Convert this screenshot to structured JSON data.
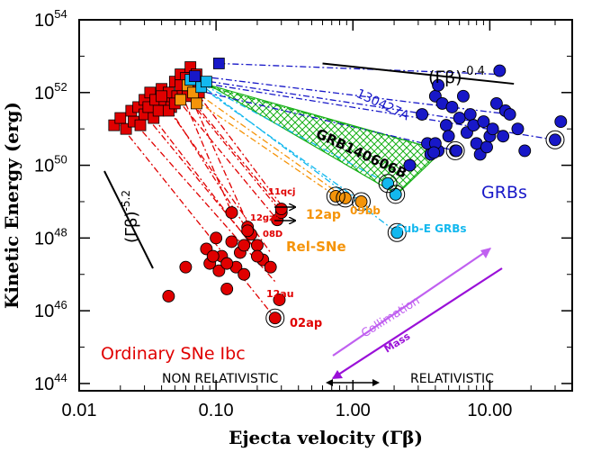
{
  "chart_data": {
    "type": "scatter",
    "xlabel": "Ejecta velocity (Γβ)",
    "ylabel": "Kinetic Energy (erg)",
    "xscale": "log",
    "yscale": "log",
    "xlim": [
      0.01,
      40
    ],
    "ylim_log10": [
      43.8,
      54
    ],
    "x_ticks": [
      {
        "value": 0.01,
        "label": "0.01"
      },
      {
        "value": 0.1,
        "label": "0.10"
      },
      {
        "value": 1,
        "label": "1.00"
      },
      {
        "value": 10,
        "label": "10.00"
      }
    ],
    "y_ticks": [
      {
        "exp": 44,
        "base": "10",
        "label": "44"
      },
      {
        "exp": 46,
        "base": "10",
        "label": "46"
      },
      {
        "exp": 48,
        "base": "10",
        "label": "48"
      },
      {
        "exp": 50,
        "base": "10",
        "label": "50"
      },
      {
        "exp": 52,
        "base": "10",
        "label": "52"
      },
      {
        "exp": 54,
        "base": "10",
        "label": "54"
      }
    ],
    "colors": {
      "ordinary": "#e00000",
      "relsne": "#f5940a",
      "subegrb": "#13b8ee",
      "grb": "#1818c8",
      "grb140606b": "#16b016",
      "collimation": "#c060f0",
      "mass": "#9a10d8"
    },
    "series": [
      {
        "name": "Ordinary SNe Ibc (circles)",
        "marker": "circle",
        "color": "#e00000",
        "points": [
          [
            0.045,
            46.4
          ],
          [
            0.06,
            47.2
          ],
          [
            0.085,
            47.7
          ],
          [
            0.09,
            47.3
          ],
          [
            0.1,
            48.0
          ],
          [
            0.105,
            47.1
          ],
          [
            0.11,
            47.5
          ],
          [
            0.12,
            46.6
          ],
          [
            0.13,
            47.9
          ],
          [
            0.14,
            47.2
          ],
          [
            0.15,
            47.6
          ],
          [
            0.16,
            47.0
          ],
          [
            0.17,
            48.3
          ],
          [
            0.18,
            48.1
          ],
          [
            0.2,
            47.8
          ],
          [
            0.22,
            47.4
          ],
          [
            0.25,
            47.2
          ],
          [
            0.28,
            48.5
          ],
          [
            0.3,
            48.7
          ],
          [
            0.3,
            48.8
          ],
          [
            0.29,
            46.3
          ],
          [
            0.13,
            48.7
          ],
          [
            0.17,
            48.2
          ],
          [
            0.095,
            47.5
          ],
          [
            0.12,
            47.3
          ],
          [
            0.16,
            47.8
          ],
          [
            0.2,
            47.5
          ],
          [
            0.27,
            45.8
          ]
        ],
        "circled": [
          [
            0.27,
            45.8
          ]
        ]
      },
      {
        "name": "Ordinary SNe Ibc (squares, inferred)",
        "marker": "square",
        "color": "#e00000",
        "points": [
          [
            0.018,
            51.1
          ],
          [
            0.02,
            51.3
          ],
          [
            0.022,
            51.0
          ],
          [
            0.024,
            51.5
          ],
          [
            0.025,
            51.2
          ],
          [
            0.027,
            51.6
          ],
          [
            0.028,
            51.1
          ],
          [
            0.03,
            51.4
          ],
          [
            0.03,
            51.8
          ],
          [
            0.032,
            51.6
          ],
          [
            0.033,
            52.0
          ],
          [
            0.035,
            51.3
          ],
          [
            0.036,
            51.8
          ],
          [
            0.038,
            51.5
          ],
          [
            0.04,
            52.1
          ],
          [
            0.042,
            51.8
          ],
          [
            0.045,
            52.0
          ],
          [
            0.047,
            51.6
          ],
          [
            0.05,
            52.3
          ],
          [
            0.052,
            51.9
          ],
          [
            0.055,
            52.5
          ],
          [
            0.057,
            52.1
          ],
          [
            0.06,
            52.4
          ],
          [
            0.062,
            51.9
          ],
          [
            0.065,
            52.7
          ],
          [
            0.068,
            52.3
          ],
          [
            0.072,
            52.5
          ],
          [
            0.075,
            52.0
          ],
          [
            0.04,
            51.9
          ],
          [
            0.045,
            51.5
          ],
          [
            0.05,
            51.7
          ],
          [
            0.055,
            52.2
          ]
        ]
      },
      {
        "name": "Rel-SNe",
        "marker": "circle",
        "color": "#f5940a",
        "points": [
          [
            0.75,
            49.15
          ],
          [
            0.88,
            49.1
          ],
          [
            1.15,
            49.0
          ]
        ],
        "circled": [
          [
            0.75,
            49.15
          ],
          [
            0.88,
            49.1
          ],
          [
            1.15,
            49.0
          ]
        ]
      },
      {
        "name": "Rel-SNe (squares, inferred)",
        "marker": "square",
        "color": "#f5940a",
        "points": [
          [
            0.055,
            51.8
          ],
          [
            0.062,
            52.2
          ],
          [
            0.068,
            52.0
          ],
          [
            0.072,
            51.7
          ]
        ]
      },
      {
        "name": "Sub-E GRBs",
        "marker": "circle",
        "color": "#13b8ee",
        "points": [
          [
            1.8,
            49.5
          ],
          [
            2.05,
            49.2
          ],
          [
            2.1,
            48.15
          ]
        ],
        "circled": [
          [
            1.8,
            49.5
          ],
          [
            2.05,
            49.2
          ],
          [
            2.1,
            48.15
          ]
        ]
      },
      {
        "name": "Sub-E GRBs (squares, inferred)",
        "marker": "square",
        "color": "#13b8ee",
        "points": [
          [
            0.065,
            52.35
          ],
          [
            0.078,
            52.15
          ],
          [
            0.085,
            52.3
          ]
        ]
      },
      {
        "name": "GRBs",
        "marker": "circle",
        "color": "#1818c8",
        "points": [
          [
            2.6,
            50.0
          ],
          [
            3.2,
            51.4
          ],
          [
            3.5,
            50.6
          ],
          [
            3.7,
            50.3
          ],
          [
            4.0,
            51.9
          ],
          [
            4.2,
            52.2
          ],
          [
            4.5,
            51.7
          ],
          [
            4.8,
            51.1
          ],
          [
            5.0,
            50.8
          ],
          [
            5.3,
            51.6
          ],
          [
            5.6,
            50.4
          ],
          [
            6.0,
            51.3
          ],
          [
            6.4,
            51.9
          ],
          [
            6.8,
            50.9
          ],
          [
            7.2,
            51.4
          ],
          [
            7.6,
            51.1
          ],
          [
            8.0,
            50.6
          ],
          [
            8.5,
            50.3
          ],
          [
            9.0,
            51.2
          ],
          [
            9.5,
            50.5
          ],
          [
            10.0,
            50.8
          ],
          [
            10.5,
            51.0
          ],
          [
            11.2,
            51.7
          ],
          [
            11.8,
            52.6
          ],
          [
            12.5,
            50.8
          ],
          [
            13.0,
            51.5
          ],
          [
            14.0,
            51.4
          ],
          [
            16.0,
            51.0
          ],
          [
            18.0,
            50.4
          ],
          [
            33.0,
            51.2
          ],
          [
            4.2,
            50.4
          ],
          [
            4.0,
            50.6
          ],
          [
            3.9,
            50.35
          ],
          [
            5.7,
            50.4
          ],
          [
            30.0,
            50.7
          ]
        ],
        "circled": [
          [
            5.6,
            50.4
          ],
          [
            30.0,
            50.7
          ]
        ]
      },
      {
        "name": "GRBs (squares, inferred)",
        "marker": "square",
        "color": "#1818c8",
        "points": [
          [
            0.105,
            52.8
          ],
          [
            0.07,
            52.45
          ]
        ]
      }
    ],
    "annotations": [
      {
        "text": "Ordinary SNe Ibc",
        "color": "#e00000"
      },
      {
        "text": "Rel-SNe",
        "color": "#f5940a"
      },
      {
        "text": "Sub-E GRBs",
        "color": "#13b8ee"
      },
      {
        "text": "GRBs",
        "color": "#1818c8"
      },
      {
        "text": "GRB140606B",
        "color": "#000000"
      },
      {
        "text": "130427A",
        "color": "#1818c8"
      },
      {
        "text": "11qcj",
        "color": "#e00000"
      },
      {
        "text": "12gzk",
        "color": "#e00000"
      },
      {
        "text": "08D",
        "color": "#e00000"
      },
      {
        "text": "12au",
        "color": "#e00000"
      },
      {
        "text": "02ap",
        "color": "#e00000"
      },
      {
        "text": "12ap",
        "color": "#f5940a"
      },
      {
        "text": "09bb",
        "color": "#f5940a"
      },
      {
        "text": "Collimation",
        "color": "#c060f0"
      },
      {
        "text": "Mass",
        "color": "#9a10d8"
      },
      {
        "text": "NON RELATIVISTIC",
        "color": "#000000"
      },
      {
        "text": "RELATIVISTIC",
        "color": "#000000"
      }
    ],
    "slope_lines": [
      {
        "name": "(Γβ)",
        "exponent": "-0.4",
        "slope": -0.4,
        "x": [
          0.6,
          15
        ]
      },
      {
        "name": "(Γβ)",
        "exponent": "-5.2",
        "slope": -5.2,
        "x": [
          0.015,
          0.032
        ]
      }
    ]
  }
}
